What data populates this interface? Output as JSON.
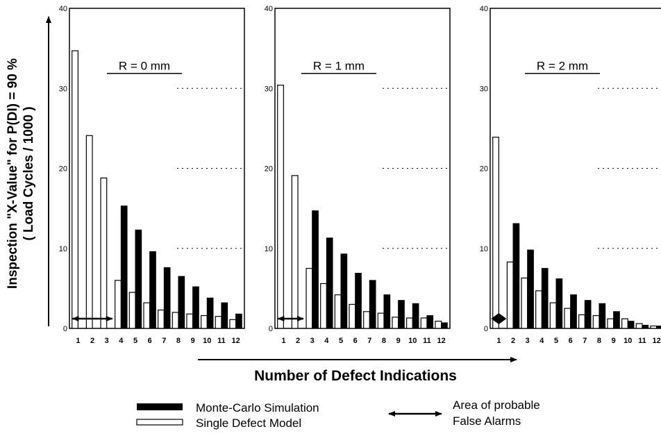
{
  "axis": {
    "ylabel_line1": "Inspection \"X-Value\" for P(DI) = 90 %",
    "ylabel_line2": "( Load Cycles / 1000 )",
    "xlabel": "Number of Defect Indications"
  },
  "legend": {
    "monte_carlo": "Monte-Carlo Simulation",
    "single_defect": "Single Defect Model",
    "false_alarm_line1": "Area of probable",
    "false_alarm_line2": "False Alarms"
  },
  "colors": {
    "monte_carlo": "#000000",
    "single_defect": "#ffffff",
    "axis": "#000000"
  },
  "chart_data": [
    {
      "type": "bar",
      "title": "R = 0 mm",
      "categories": [
        "1",
        "2",
        "3",
        "4",
        "5",
        "6",
        "7",
        "8",
        "9",
        "10",
        "11",
        "12"
      ],
      "ylim": [
        0,
        40
      ],
      "yticks": [
        0,
        10,
        20,
        30,
        40
      ],
      "grid": "dotted at 10, 20, 30",
      "series": [
        {
          "name": "Single Defect Model",
          "values": [
            34.7,
            24.1,
            18.8,
            6.0,
            4.5,
            3.2,
            2.3,
            2.0,
            1.8,
            1.6,
            1.5,
            1.1
          ]
        },
        {
          "name": "Monte-Carlo Simulation",
          "values": [
            null,
            null,
            null,
            15.3,
            12.3,
            9.6,
            7.6,
            6.5,
            5.2,
            3.8,
            3.2,
            1.8
          ]
        }
      ],
      "false_alarm_range": [
        1,
        3
      ]
    },
    {
      "type": "bar",
      "title": "R = 1 mm",
      "categories": [
        "1",
        "2",
        "3",
        "4",
        "5",
        "6",
        "7",
        "8",
        "9",
        "10",
        "11",
        "12"
      ],
      "ylim": [
        0,
        40
      ],
      "yticks": [
        0,
        10,
        20,
        30,
        40
      ],
      "grid": "dotted at 10, 20, 30",
      "series": [
        {
          "name": "Single Defect Model",
          "values": [
            30.4,
            19.1,
            7.5,
            5.6,
            4.2,
            3.0,
            2.1,
            1.9,
            1.4,
            1.3,
            1.3,
            0.9
          ]
        },
        {
          "name": "Monte-Carlo Simulation",
          "values": [
            null,
            null,
            14.7,
            11.3,
            9.3,
            6.9,
            6.0,
            4.2,
            3.5,
            3.1,
            1.6,
            0.7
          ]
        }
      ],
      "false_alarm_range": [
        1,
        2
      ]
    },
    {
      "type": "bar",
      "title": "R = 2 mm",
      "categories": [
        "1",
        "2",
        "3",
        "4",
        "5",
        "6",
        "7",
        "8",
        "9",
        "10",
        "11",
        "12"
      ],
      "ylim": [
        0,
        40
      ],
      "yticks": [
        0,
        10,
        20,
        30,
        40
      ],
      "grid": "dotted at 10, 20, 30",
      "series": [
        {
          "name": "Single Defect Model",
          "values": [
            23.9,
            8.3,
            6.3,
            4.7,
            3.2,
            2.5,
            1.7,
            1.6,
            1.2,
            1.2,
            0.6,
            0.3
          ]
        },
        {
          "name": "Monte-Carlo Simulation",
          "values": [
            null,
            13.1,
            9.8,
            7.5,
            6.2,
            4.2,
            3.5,
            3.1,
            2.1,
            0.9,
            0.4,
            0.3
          ]
        }
      ],
      "false_alarm_range": [
        1,
        1
      ]
    }
  ]
}
